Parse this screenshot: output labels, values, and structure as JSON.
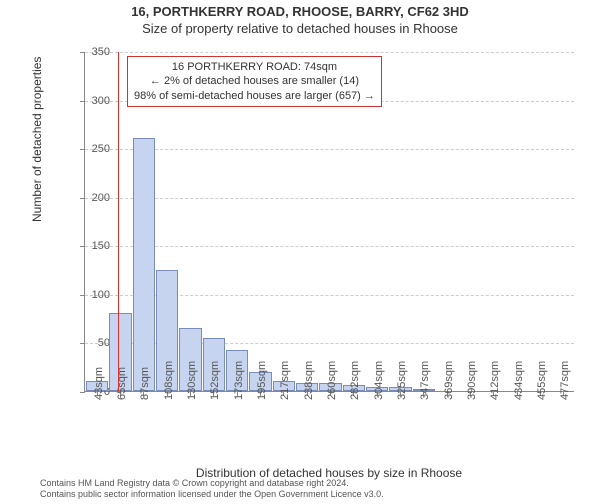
{
  "titles": {
    "line1": "16, PORTHKERRY ROAD, RHOOSE, BARRY, CF62 3HD",
    "line2": "Size of property relative to detached houses in Rhoose"
  },
  "chart": {
    "type": "histogram",
    "ylabel": "Number of detached properties",
    "xlabel": "Distribution of detached houses by size in Rhoose",
    "ylim": [
      0,
      350
    ],
    "ytick_step": 50,
    "background_color": "#ffffff",
    "grid_color": "#cccccc",
    "bar_fill": "#c6d4f0",
    "bar_border": "#7a8db8",
    "ref_line_color": "#dd3030",
    "ref_value_sqm": 74,
    "x_start": 43,
    "x_step": 21.7,
    "categories": [
      "43sqm",
      "65sqm",
      "87sqm",
      "108sqm",
      "130sqm",
      "152sqm",
      "173sqm",
      "195sqm",
      "217sqm",
      "238sqm",
      "260sqm",
      "282sqm",
      "304sqm",
      "325sqm",
      "347sqm",
      "369sqm",
      "390sqm",
      "412sqm",
      "434sqm",
      "455sqm",
      "477sqm"
    ],
    "values": [
      10,
      80,
      260,
      125,
      65,
      55,
      42,
      20,
      10,
      8,
      8,
      6,
      4,
      4,
      2,
      0,
      0,
      0,
      0,
      0,
      0
    ]
  },
  "annotation": {
    "line1": "16 PORTHKERRY ROAD: 74sqm",
    "line2": "← 2% of detached houses are smaller (14)",
    "line3": "98% of semi-detached houses are larger (657) →"
  },
  "footer": {
    "line1": "Contains HM Land Registry data © Crown copyright and database right 2024.",
    "line2": "Contains public sector information licensed under the Open Government Licence v3.0."
  }
}
